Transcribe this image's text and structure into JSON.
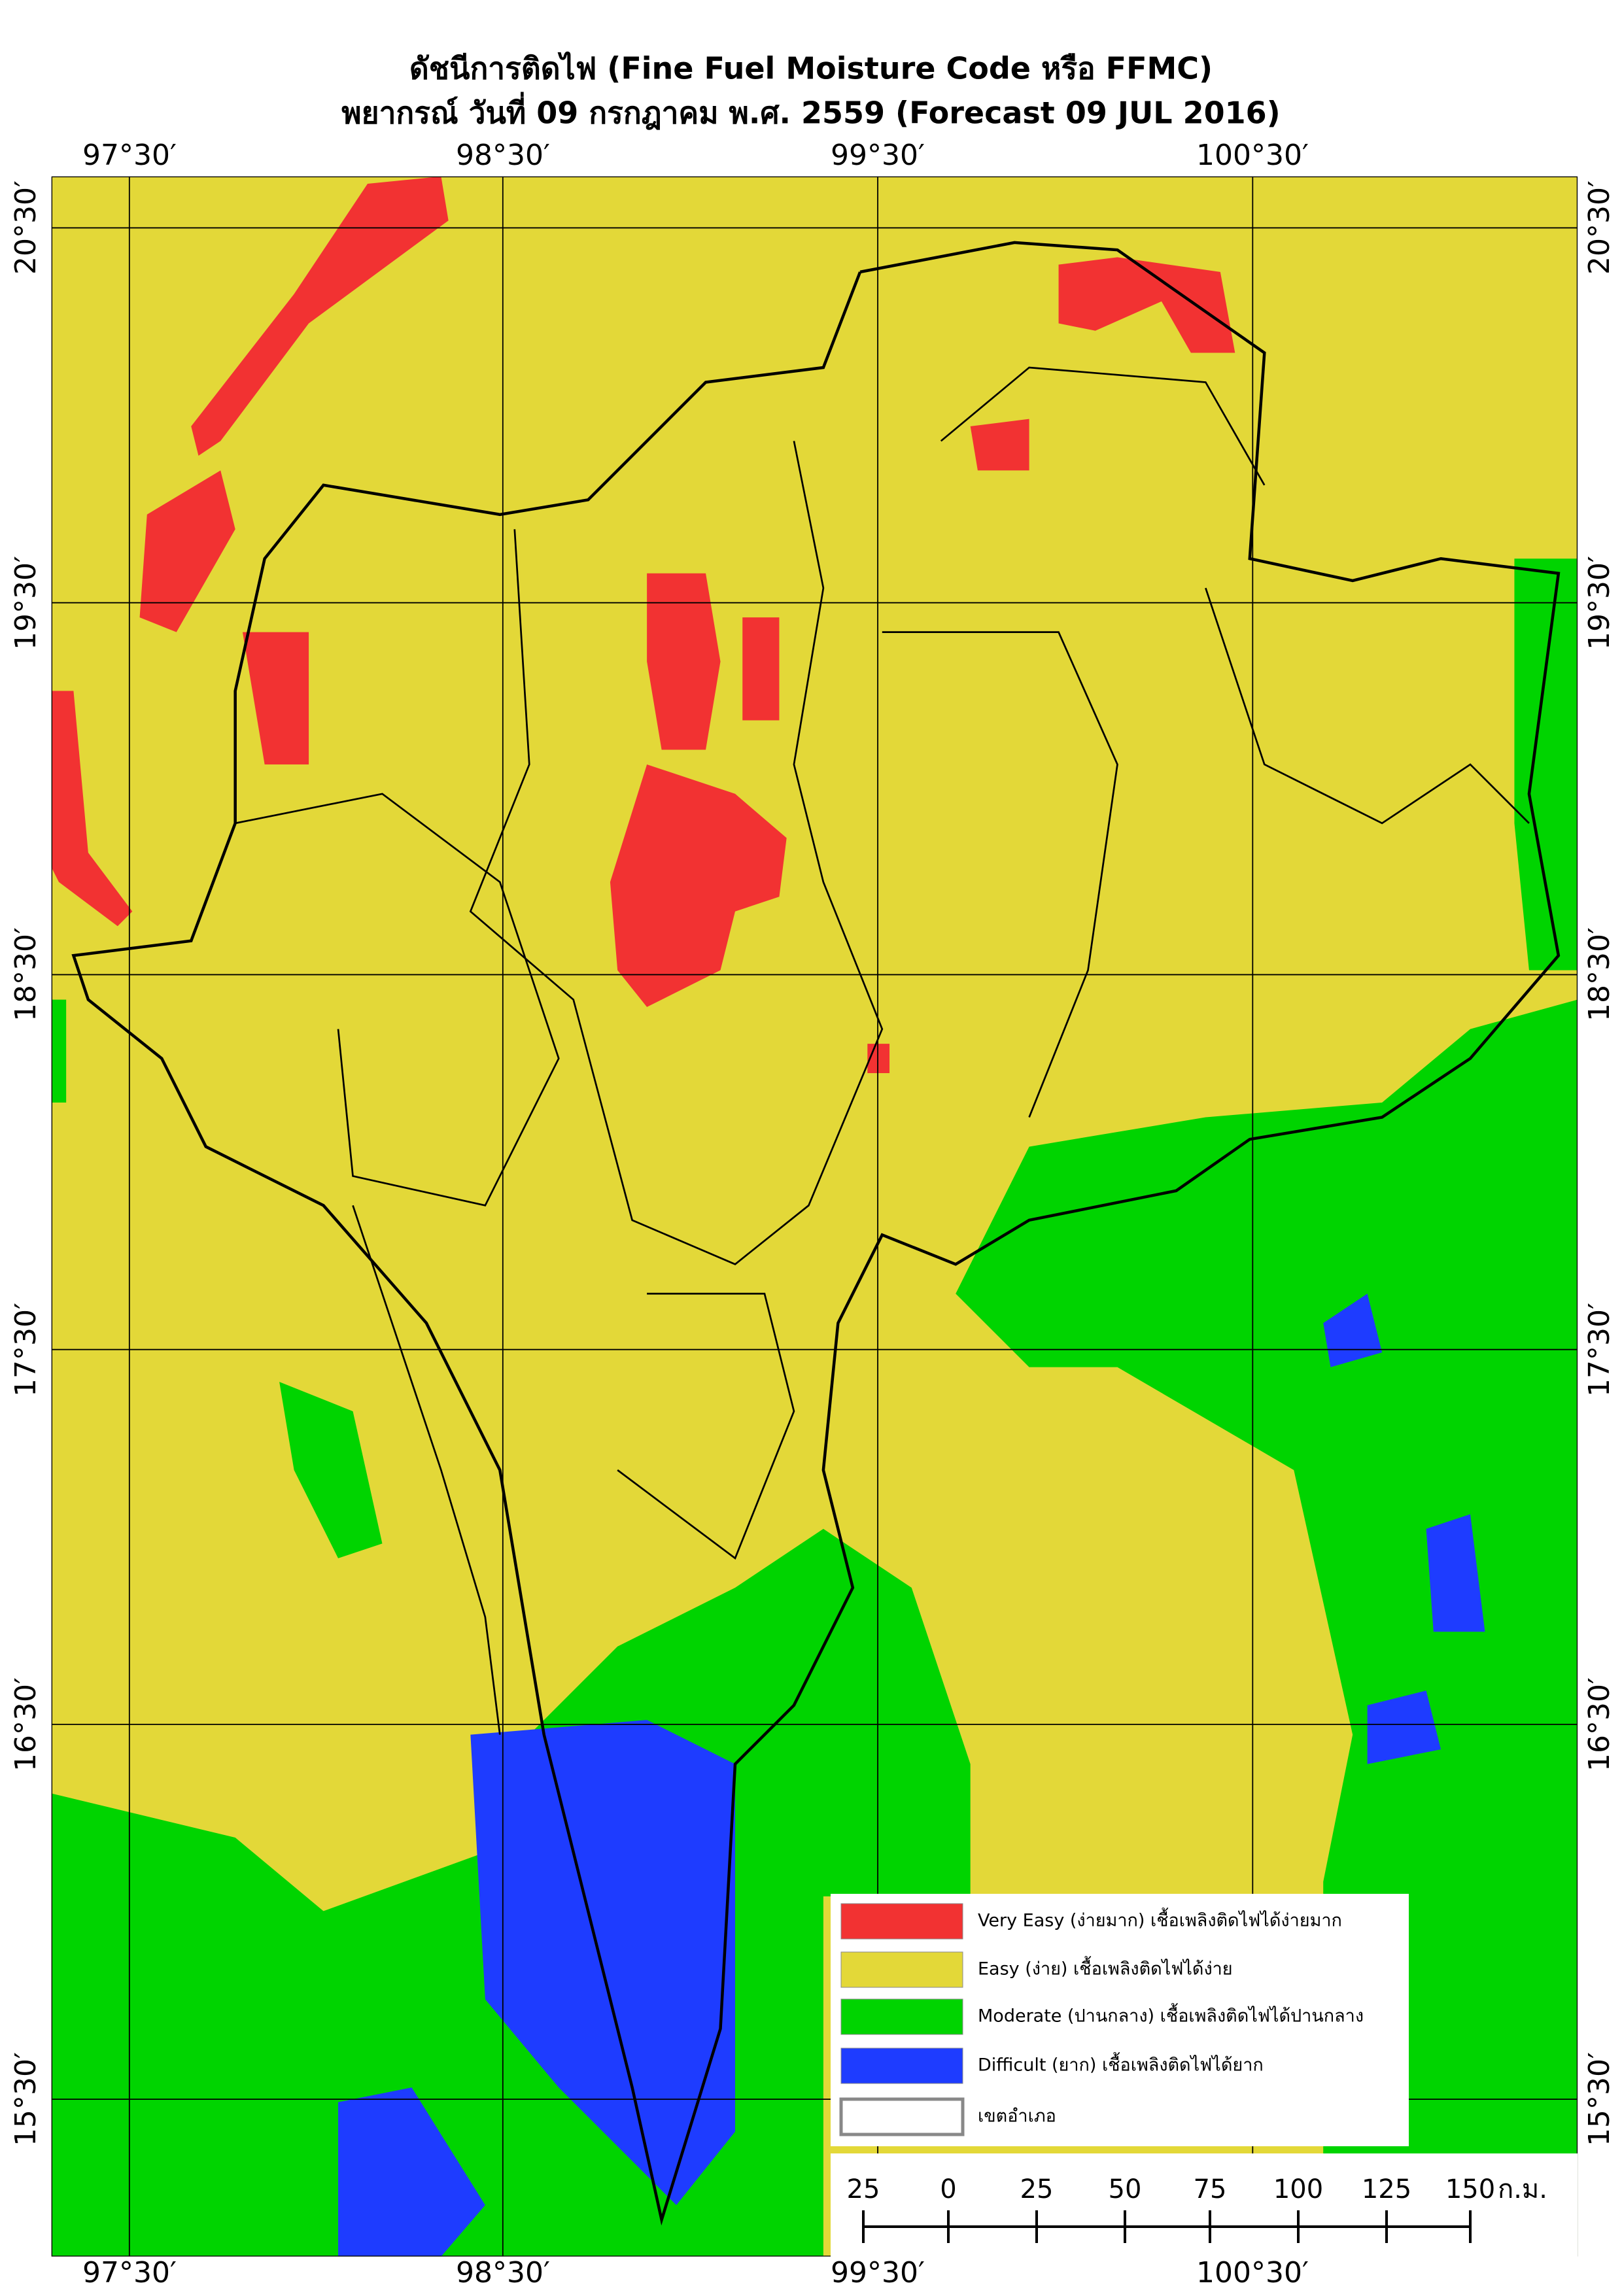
{
  "header": {
    "title": "ดัชนีการติดไฟ (Fine Fuel Moisture Code หรือ FFMC)",
    "subtitle": "พยากรณ์ วันที่ 09 กรกฎาคม พ.ศ. 2559 (Forecast 09 JUL 2016)"
  },
  "map": {
    "longitude_labels": [
      "97°30′",
      "98°30′",
      "99°30′",
      "100°30′"
    ],
    "latitude_labels": [
      "20°30′",
      "19°30′",
      "18°30′",
      "17°30′",
      "16°30′",
      "15°30′"
    ]
  },
  "legend": {
    "items": [
      {
        "label": "Very Easy (ง่ายมาก) เชื้อเพลิงติดไฟได้ง่ายมาก",
        "color": "#f23232"
      },
      {
        "label": "Easy (ง่าย) เชื้อเพลิงติดไฟได้ง่าย",
        "color": "#e3d838"
      },
      {
        "label": "Moderate (ปานกลาง) เชื้อเพลิงติดไฟได้ปานกลาง",
        "color": "#00d400"
      },
      {
        "label": "Difficult (ยาก) เชื้อเพลิงติดไฟได้ยาก",
        "color": "#1e3cff"
      },
      {
        "label": "เขตอำเภอ",
        "color": "#ffffff"
      }
    ]
  },
  "scale_bar": {
    "labels": [
      "25",
      "0",
      "25",
      "50",
      "75",
      "100",
      "125",
      "150"
    ],
    "unit": "ก.ม."
  }
}
